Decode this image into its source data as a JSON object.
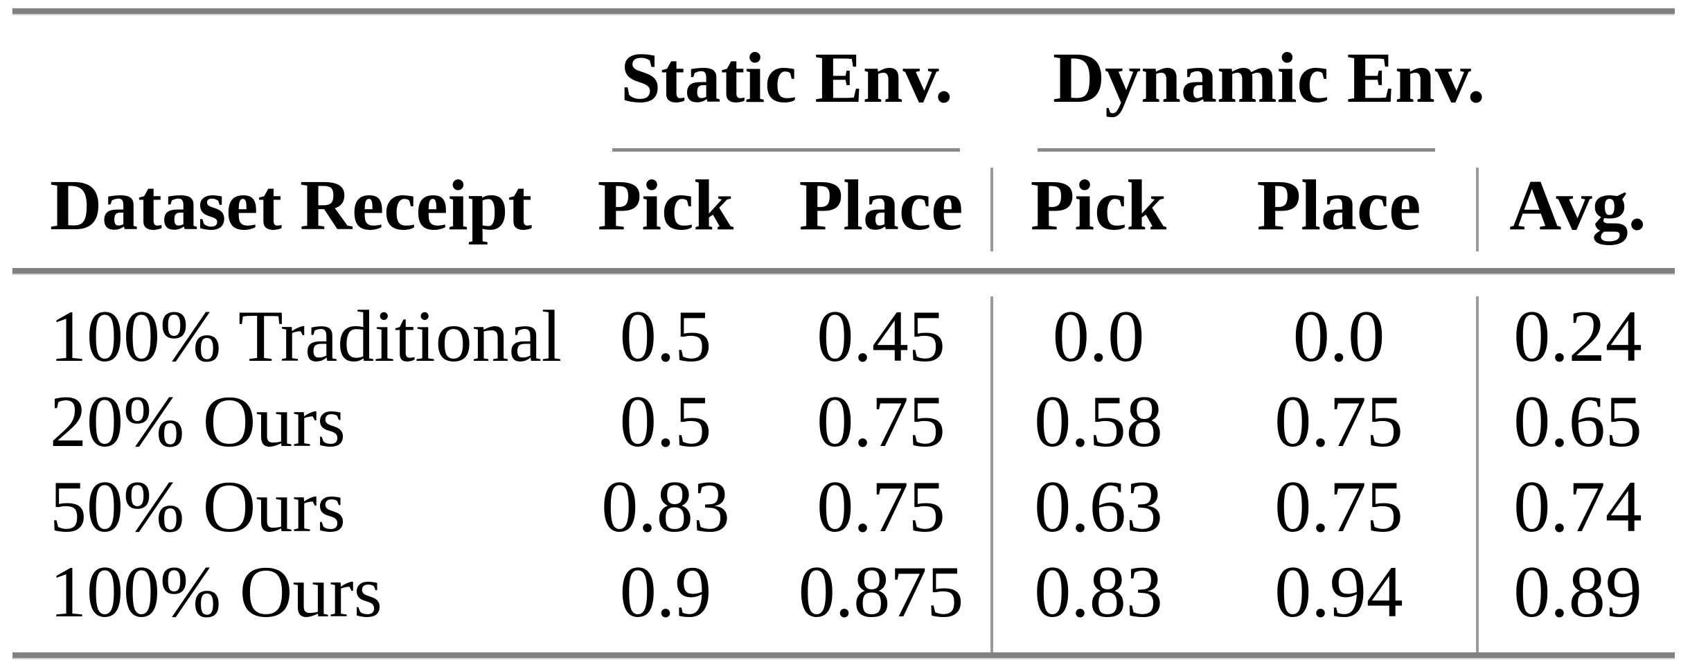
{
  "table": {
    "group_headers": {
      "static": "Static Env.",
      "dynamic": "Dynamic Env."
    },
    "header": {
      "dataset": "Dataset Receipt",
      "static_pick": "Pick",
      "static_place": "Place",
      "dynamic_pick": "Pick",
      "dynamic_place": "Place",
      "avg": "Avg."
    },
    "rows": [
      {
        "dataset": "100% Traditional",
        "static_pick": "0.5",
        "static_place": "0.45",
        "dynamic_pick": "0.0",
        "dynamic_place": "0.0",
        "avg": "0.24"
      },
      {
        "dataset": "20% Ours",
        "static_pick": "0.5",
        "static_place": "0.75",
        "dynamic_pick": "0.58",
        "dynamic_place": "0.75",
        "avg": "0.65"
      },
      {
        "dataset": "50% Ours",
        "static_pick": "0.83",
        "static_place": "0.75",
        "dynamic_pick": "0.63",
        "dynamic_place": "0.75",
        "avg": "0.74"
      },
      {
        "dataset": "100% Ours",
        "static_pick": "0.9",
        "static_place": "0.875",
        "dynamic_pick": "0.83",
        "dynamic_place": "0.94",
        "avg": "0.89"
      }
    ],
    "colors": {
      "rule_heavy": "#808080",
      "rule_light": "#9a9a9a",
      "text": "#000000",
      "background": "#ffffff"
    }
  }
}
